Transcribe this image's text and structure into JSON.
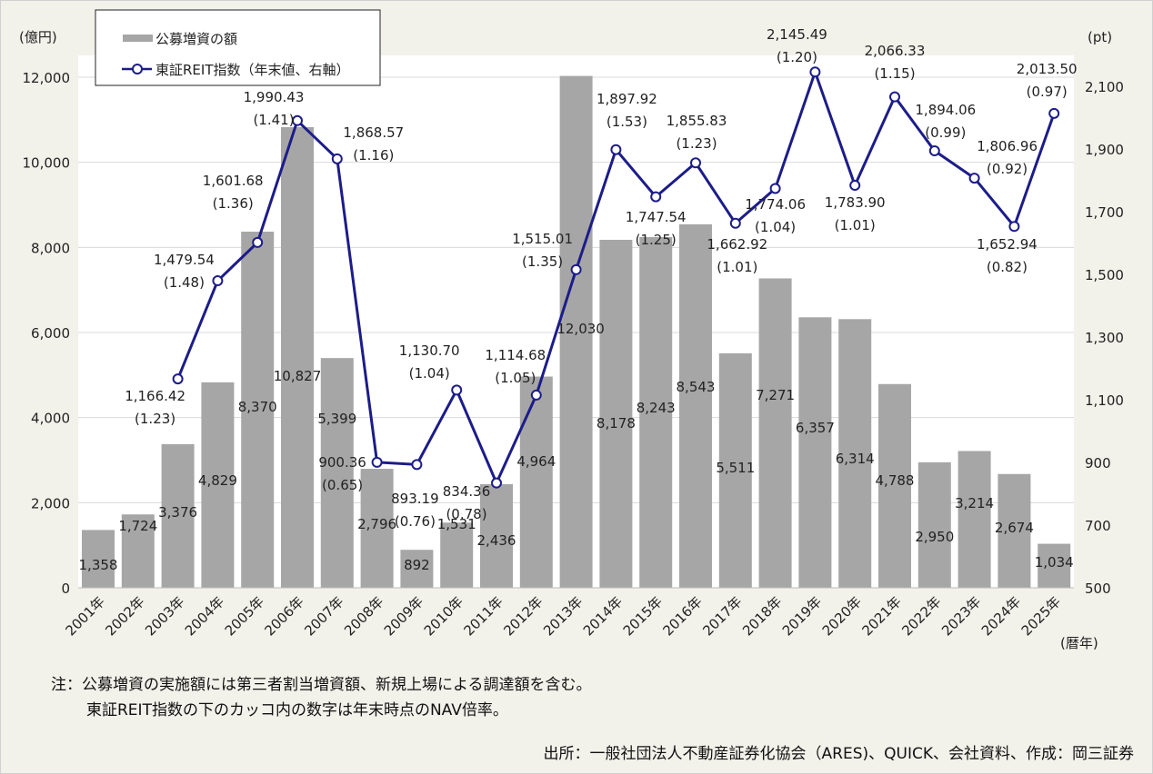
{
  "chart_data": {
    "type": "bar+line",
    "categories": [
      "2001年",
      "2002年",
      "2003年",
      "2004年",
      "2005年",
      "2006年",
      "2007年",
      "2008年",
      "2009年",
      "2010年",
      "2011年",
      "2012年",
      "2013年",
      "2014年",
      "2015年",
      "2016年",
      "2017年",
      "2018年",
      "2019年",
      "2020年",
      "2021年",
      "2022年",
      "2023年",
      "2024年",
      "2025年"
    ],
    "series": [
      {
        "name": "公募増資の額",
        "type": "bar",
        "axis": "left",
        "color": "#a6a6a6",
        "values": [
          1358,
          1724,
          3376,
          4829,
          8370,
          10827,
          5399,
          2796,
          892,
          1531,
          2436,
          4964,
          12030,
          8178,
          8243,
          8543,
          5511,
          7271,
          6357,
          6314,
          4788,
          2950,
          3214,
          2674,
          1034
        ],
        "labels": [
          "1,358",
          "1,724",
          "3,376",
          "4,829",
          "8,370",
          "10,827",
          "5,399",
          "2,796",
          "892",
          "1,531",
          "2,436",
          "4,964",
          "12,030",
          "8,178",
          "8,243",
          "8,543",
          "5,511",
          "7,271",
          "6,357",
          "6,314",
          "4,788",
          "2,950",
          "3,214",
          "2,674",
          "1,034"
        ]
      },
      {
        "name": "東証REIT指数（年末値、右軸）",
        "type": "line",
        "axis": "right",
        "color": "#1c1c8a",
        "values": [
          null,
          null,
          1166.42,
          1479.54,
          1601.68,
          1990.43,
          1868.57,
          900.36,
          893.19,
          1130.7,
          834.36,
          1114.68,
          1515.01,
          1897.92,
          1747.54,
          1855.83,
          1662.92,
          1774.06,
          2145.49,
          1783.9,
          2066.33,
          1894.06,
          1806.96,
          1652.94,
          2013.5
        ],
        "labels": [
          null,
          null,
          "1,166.42",
          "1,479.54",
          "1,601.68",
          "1,990.43",
          "1,868.57",
          "900.36",
          "893.19",
          "1,130.70",
          "834.36",
          "1,114.68",
          "1,515.01",
          "1,897.92",
          "1,747.54",
          "1,855.83",
          "1,662.92",
          "1,774.06",
          "2,145.49",
          "1,783.90",
          "2,066.33",
          "1,894.06",
          "1,806.96",
          "1,652.94",
          "2,013.50"
        ],
        "nav_ratio_labels": [
          null,
          null,
          "(1.23)",
          "(1.48)",
          "(1.36)",
          "(1.41)",
          "(1.16)",
          "(0.65)",
          "(0.76)",
          "(1.04)",
          "(0.78)",
          "(1.05)",
          "(1.35)",
          "(1.53)",
          "(1.25)",
          "(1.23)",
          "(1.01)",
          "(1.04)",
          "(1.20)",
          "(1.01)",
          "(1.15)",
          "(0.99)",
          "(0.92)",
          "(0.82)",
          "(0.97)"
        ]
      }
    ],
    "left_axis": {
      "label": "(億円)",
      "ylim": [
        0,
        12000
      ],
      "ticks": [
        "0",
        "2,000",
        "4,000",
        "6,000",
        "8,000",
        "10,000",
        "12,000"
      ]
    },
    "right_axis": {
      "label": "(pt)",
      "ylim": [
        500,
        2100
      ],
      "ticks": [
        "500",
        "700",
        "900",
        "1,100",
        "1,300",
        "1,500",
        "1,700",
        "1,900",
        "2,100"
      ]
    },
    "xlabel": "(暦年)",
    "grid": true,
    "legend": "top-left"
  },
  "notes": {
    "line1": "注：公募増資の実施額には第三者割当増資額、新規上場による調達額を含む。",
    "line2": "東証REIT指数の下のカッコ内の数字は年末時点のNAV倍率。",
    "source": "出所：一般社団法人不動産証券化協会（ARES)、QUICK、会社資料、作成：岡三証券"
  }
}
